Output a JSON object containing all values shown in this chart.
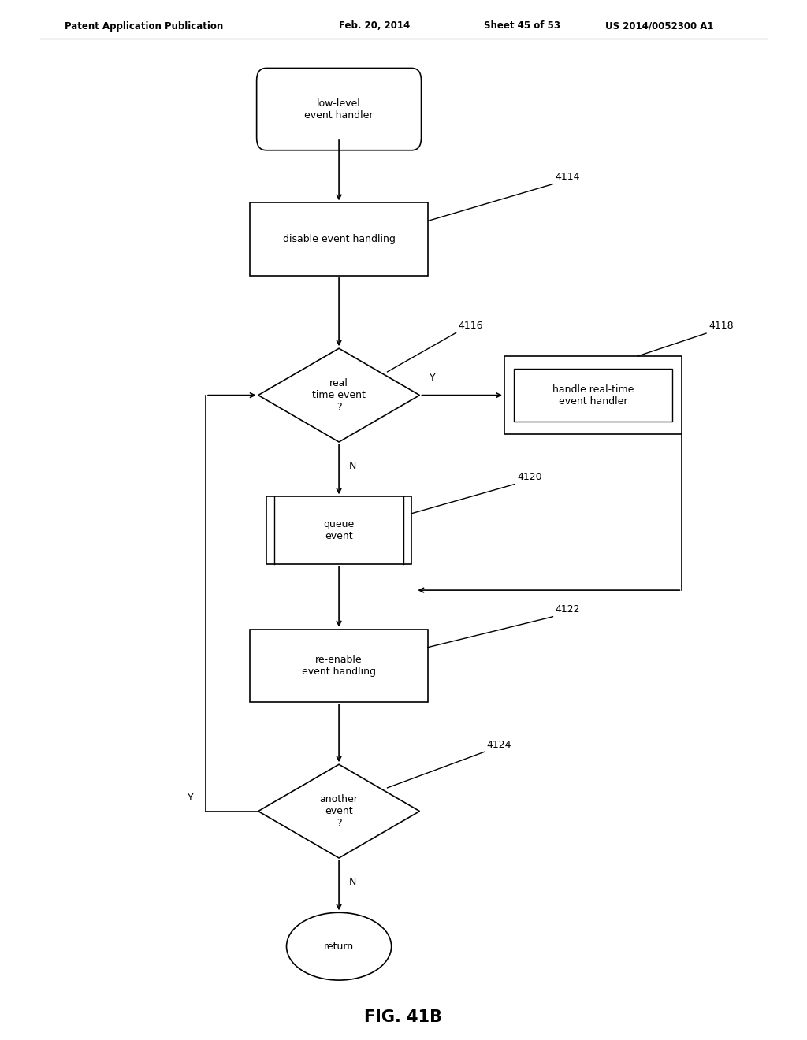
{
  "bg_color": "#ffffff",
  "line_color": "#000000",
  "text_color": "#000000",
  "header_text": "Patent Application Publication",
  "header_date": "Feb. 20, 2014",
  "header_sheet": "Sheet 45 of 53",
  "header_patent": "US 2014/0052300 A1",
  "fig_label": "FIG. 41B"
}
